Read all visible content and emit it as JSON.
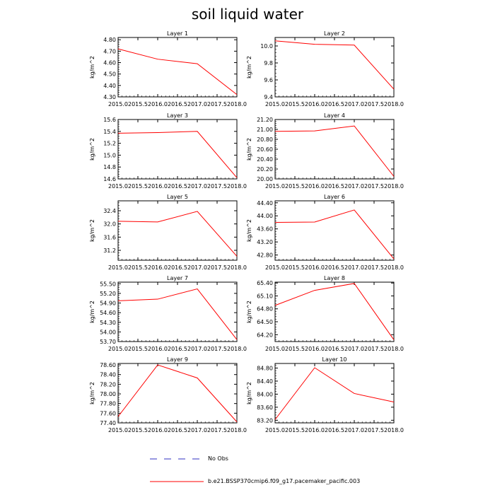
{
  "title": "soil liquid water",
  "colors": {
    "model_line": "#ff0000",
    "obs_line": "#3030c0",
    "axis": "#000000"
  },
  "legend": [
    {
      "label": "No Obs",
      "style": "dashed",
      "color": "#3030c0"
    },
    {
      "label": "b.e21.BSSP370cmip6.f09_g17.pacemaker_pacific.003",
      "style": "solid",
      "color": "#ff0000"
    }
  ],
  "chart_data": [
    {
      "type": "line",
      "title": "Layer 1",
      "ylabel": "kg/m^2",
      "x": [
        2015,
        2016,
        2017,
        2018
      ],
      "xlim": [
        2015,
        2018
      ],
      "xticks": [
        "2015.0",
        "2015.5",
        "2016.0",
        "2016.5",
        "2017.0",
        "2017.5",
        "2018.0"
      ],
      "series": [
        {
          "values": [
            4.72,
            4.63,
            4.59,
            4.32
          ]
        }
      ],
      "ylim": [
        4.3,
        4.82
      ],
      "yticks": [
        "4.30",
        "4.40",
        "4.50",
        "4.60",
        "4.70",
        "4.80"
      ]
    },
    {
      "type": "line",
      "title": "Layer 2",
      "ylabel": "kg/m^2",
      "x": [
        2015,
        2016,
        2017,
        2018
      ],
      "xlim": [
        2015,
        2018
      ],
      "xticks": [
        "2015.0",
        "2015.5",
        "2016.0",
        "2016.5",
        "2017.0",
        "2017.5",
        "2018.0"
      ],
      "series": [
        {
          "values": [
            10.06,
            10.02,
            10.01,
            9.49
          ]
        }
      ],
      "ylim": [
        9.4,
        10.1
      ],
      "yticks": [
        "9.4",
        "9.6",
        "9.8",
        "10.0"
      ]
    },
    {
      "type": "line",
      "title": "Layer 3",
      "ylabel": "kg/m^2",
      "x": [
        2015,
        2016,
        2017,
        2018
      ],
      "xlim": [
        2015,
        2018
      ],
      "xticks": [
        "2015.0",
        "2015.5",
        "2016.0",
        "2016.5",
        "2017.0",
        "2017.5",
        "2018.0"
      ],
      "series": [
        {
          "values": [
            15.37,
            15.38,
            15.4,
            14.62
          ]
        }
      ],
      "ylim": [
        14.6,
        15.6
      ],
      "yticks": [
        "14.6",
        "14.8",
        "15.0",
        "15.2",
        "15.4",
        "15.6"
      ]
    },
    {
      "type": "line",
      "title": "Layer 4",
      "ylabel": "kg/m^2",
      "x": [
        2015,
        2016,
        2017,
        2018
      ],
      "xlim": [
        2015,
        2018
      ],
      "xticks": [
        "2015.0",
        "2015.5",
        "2016.0",
        "2016.5",
        "2017.0",
        "2017.5",
        "2018.0"
      ],
      "series": [
        {
          "values": [
            20.96,
            20.97,
            21.07,
            20.05
          ]
        }
      ],
      "ylim": [
        20.0,
        21.2
      ],
      "yticks": [
        "20.00",
        "20.20",
        "20.40",
        "20.60",
        "20.80",
        "21.00",
        "21.20"
      ]
    },
    {
      "type": "line",
      "title": "Layer 5",
      "ylabel": "kg/m^2",
      "x": [
        2015,
        2016,
        2017,
        2018
      ],
      "xlim": [
        2015,
        2018
      ],
      "xticks": [
        "2015.0",
        "2015.5",
        "2016.0",
        "2016.5",
        "2017.0",
        "2017.5",
        "2018.0"
      ],
      "series": [
        {
          "values": [
            32.08,
            32.06,
            32.38,
            31.02
          ]
        }
      ],
      "ylim": [
        30.9,
        32.7
      ],
      "yticks": [
        "31.2",
        "31.6",
        "32.0",
        "32.4"
      ]
    },
    {
      "type": "line",
      "title": "Layer 6",
      "ylabel": "kg/m^2",
      "x": [
        2015,
        2016,
        2017,
        2018
      ],
      "xlim": [
        2015,
        2018
      ],
      "xticks": [
        "2015.0",
        "2015.5",
        "2016.0",
        "2016.5",
        "2017.0",
        "2017.5",
        "2018.0"
      ],
      "series": [
        {
          "values": [
            43.8,
            43.81,
            44.18,
            42.68
          ]
        }
      ],
      "ylim": [
        42.64,
        44.46
      ],
      "yticks": [
        "42.80",
        "43.20",
        "43.60",
        "44.00",
        "44.40"
      ]
    },
    {
      "type": "line",
      "title": "Layer 7",
      "ylabel": "kg/m^2",
      "x": [
        2015,
        2016,
        2017,
        2018
      ],
      "xlim": [
        2015,
        2018
      ],
      "xticks": [
        "2015.0",
        "2015.5",
        "2016.0",
        "2016.5",
        "2017.0",
        "2017.5",
        "2018.0"
      ],
      "series": [
        {
          "values": [
            54.97,
            55.02,
            55.34,
            53.76
          ]
        }
      ],
      "ylim": [
        53.7,
        55.55
      ],
      "yticks": [
        "53.70",
        "54.00",
        "54.30",
        "54.60",
        "54.90",
        "55.20",
        "55.50"
      ]
    },
    {
      "type": "line",
      "title": "Layer 8",
      "ylabel": "kg/m^2",
      "x": [
        2015,
        2016,
        2017,
        2018
      ],
      "xlim": [
        2015,
        2018
      ],
      "xticks": [
        "2015.0",
        "2015.5",
        "2016.0",
        "2016.5",
        "2017.0",
        "2017.5",
        "2018.0"
      ],
      "series": [
        {
          "values": [
            64.88,
            65.23,
            65.39,
            64.08
          ]
        }
      ],
      "ylim": [
        64.04,
        65.42
      ],
      "yticks": [
        "64.20",
        "64.50",
        "64.80",
        "65.10",
        "65.40"
      ]
    },
    {
      "type": "line",
      "title": "Layer 9",
      "ylabel": "kg/m^2",
      "x": [
        2015,
        2016,
        2017,
        2018
      ],
      "xlim": [
        2015,
        2018
      ],
      "xticks": [
        "2015.0",
        "2015.5",
        "2016.0",
        "2016.5",
        "2017.0",
        "2017.5",
        "2018.0"
      ],
      "series": [
        {
          "values": [
            77.53,
            78.6,
            78.33,
            77.42
          ]
        }
      ],
      "ylim": [
        77.4,
        78.63
      ],
      "yticks": [
        "77.40",
        "77.60",
        "77.80",
        "78.00",
        "78.20",
        "78.40",
        "78.60"
      ]
    },
    {
      "type": "line",
      "title": "Layer 10",
      "ylabel": "kg/m^2",
      "x": [
        2015,
        2016,
        2017,
        2018
      ],
      "xlim": [
        2015,
        2018
      ],
      "xticks": [
        "2015.0",
        "2015.5",
        "2016.0",
        "2016.5",
        "2017.0",
        "2017.5",
        "2018.0"
      ],
      "series": [
        {
          "values": [
            83.22,
            84.81,
            84.02,
            83.76
          ]
        }
      ],
      "ylim": [
        83.12,
        84.94
      ],
      "yticks": [
        "83.20",
        "83.60",
        "84.00",
        "84.40",
        "84.80"
      ]
    }
  ]
}
